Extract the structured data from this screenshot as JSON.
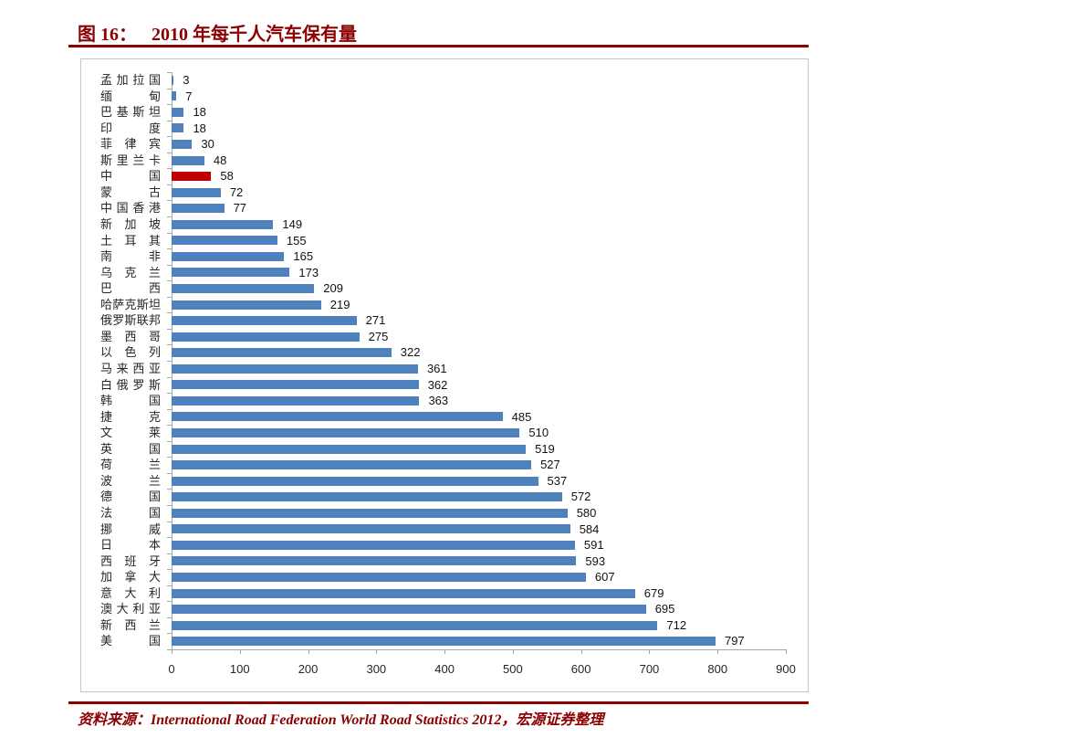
{
  "header": {
    "figure_label": "图 16：",
    "figure_title": "2010 年每千人汽车保有量"
  },
  "footer": {
    "source_text": "资料来源：International Road Federation World Road Statistics 2012，宏源证券整理"
  },
  "colors": {
    "accent_dark_red": "#8B0000",
    "bar_blue": "#4F81BD",
    "highlight_red": "#C00000",
    "axis_gray": "#A6A6A6",
    "text_dark": "#262626"
  },
  "chart_data": {
    "type": "bar",
    "orientation": "horizontal",
    "title": "2010 年每千人汽车保有量",
    "categories": [
      "孟加拉国",
      "缅甸",
      "巴基斯坦",
      "印度",
      "菲律宾",
      "斯里兰卡",
      "中国",
      "蒙古",
      "中国香港",
      "新加坡",
      "土耳其",
      "南非",
      "乌克兰",
      "巴西",
      "哈萨克斯坦",
      "俄罗斯联邦",
      "墨西哥",
      "以色列",
      "马来西亚",
      "白俄罗斯",
      "韩国",
      "捷克",
      "文莱",
      "英国",
      "荷兰",
      "波兰",
      "德国",
      "法国",
      "挪威",
      "日本",
      "西班牙",
      "加拿大",
      "意大利",
      "澳大利亚",
      "新西兰",
      "美国"
    ],
    "values": [
      3,
      7,
      18,
      18,
      30,
      48,
      58,
      72,
      77,
      149,
      155,
      165,
      173,
      209,
      219,
      271,
      275,
      322,
      361,
      362,
      363,
      485,
      510,
      519,
      527,
      537,
      572,
      580,
      584,
      591,
      593,
      607,
      679,
      695,
      712,
      797
    ],
    "highlight_category": "中国",
    "value_labels": true,
    "xlabel": "",
    "ylabel": "",
    "xlim": [
      0,
      900
    ],
    "x_ticks": [
      0,
      100,
      200,
      300,
      400,
      500,
      600,
      700,
      800,
      900
    ],
    "grid": false,
    "legend": "none"
  }
}
